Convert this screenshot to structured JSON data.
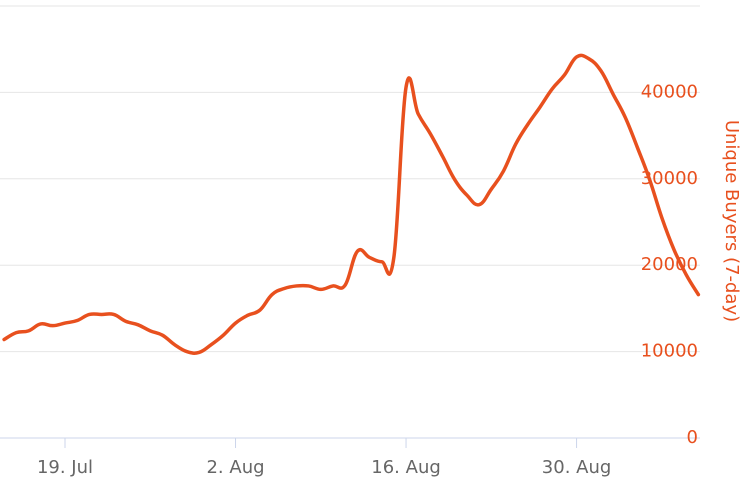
{
  "chart_data": {
    "type": "line",
    "categories": [
      null,
      null,
      null,
      null,
      null,
      "19. Jul",
      null,
      null,
      null,
      null,
      null,
      null,
      null,
      null,
      null,
      null,
      null,
      null,
      null,
      "2. Aug",
      null,
      null,
      null,
      null,
      null,
      null,
      null,
      null,
      null,
      null,
      null,
      null,
      null,
      "16. Aug",
      null,
      null,
      null,
      null,
      null,
      null,
      null,
      null,
      null,
      null,
      null,
      null,
      null,
      "30. Aug",
      null,
      null,
      null,
      null,
      null,
      null,
      null,
      null,
      null,
      null
    ],
    "series": [
      {
        "name": "Unique Buyers (7-day)",
        "color": "#e8501e",
        "axis": "y2",
        "values": [
          11400,
          12200,
          12400,
          13200,
          13000,
          13300,
          13600,
          14300,
          14300,
          14300,
          13500,
          13100,
          12400,
          11900,
          10800,
          10000,
          9900,
          10800,
          11900,
          13300,
          14200,
          14800,
          16600,
          17300,
          17600,
          17600,
          17200,
          17600,
          17700,
          21600,
          20900,
          20400,
          20900,
          40600,
          37500,
          35200,
          32600,
          29900,
          28100,
          27000,
          28800,
          30900,
          34000,
          36300,
          38300,
          40400,
          42000,
          44100,
          43900,
          42500,
          39800,
          37100,
          33600,
          29900,
          25500,
          21800,
          18900,
          16600
        ]
      }
    ],
    "y2label": "Unique Buyers (7-day)",
    "y2lim": [
      0,
      50000
    ],
    "y2ticks": [
      0,
      10000,
      20000,
      30000,
      40000
    ],
    "grid": true
  }
}
